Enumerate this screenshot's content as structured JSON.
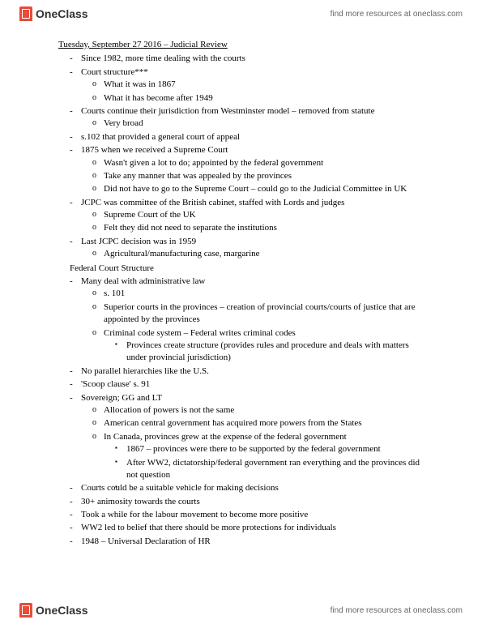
{
  "brand": {
    "name": "OneClass",
    "tagline": "find more resources at oneclass.com"
  },
  "doc": {
    "title": "Tuesday, September 27 2016 – Judicial Review",
    "sections": [
      {
        "heading": null,
        "items": [
          {
            "t": "Since 1982, more time dealing with the courts",
            "sub": []
          },
          {
            "t": "Court structure***",
            "sub": [
              {
                "t": "What it was in 1867",
                "sub": []
              },
              {
                "t": "What it has become after 1949",
                "sub": []
              }
            ]
          },
          {
            "t": "Courts continue their jurisdiction from Westminster model – removed from statute",
            "sub": [
              {
                "t": "Very broad",
                "sub": []
              }
            ]
          },
          {
            "t": "s.102 that provided a general court of appeal",
            "sub": []
          },
          {
            "t": "1875 when we received a Supreme Court",
            "sub": [
              {
                "t": "Wasn't given a lot to do; appointed by the federal government",
                "sub": []
              },
              {
                "t": "Take any manner that was appealed by the provinces",
                "sub": []
              },
              {
                "t": "Did not have to go to the Supreme Court – could go to the Judicial Committee in UK",
                "sub": []
              }
            ]
          },
          {
            "t": "JCPC was committee of the British cabinet, staffed with Lords and judges",
            "sub": [
              {
                "t": "Supreme Court of the UK",
                "sub": []
              },
              {
                "t": "Felt they did not need to separate the institutions",
                "sub": []
              }
            ]
          },
          {
            "t": "Last JCPC decision was in 1959",
            "sub": [
              {
                "t": "Agricultural/manufacturing case, margarine",
                "sub": []
              }
            ]
          }
        ]
      },
      {
        "heading": "Federal Court Structure",
        "items": [
          {
            "t": "Many deal with administrative law",
            "sub": [
              {
                "t": "s. 101",
                "sub": []
              },
              {
                "t": "Superior courts in the provinces – creation of provincial courts/courts of justice that are appointed by the provinces",
                "sub": []
              },
              {
                "t": "Criminal code system – Federal writes criminal codes",
                "sub": [
                  {
                    "t": "Provinces create structure (provides rules and procedure and deals with matters under provincial jurisdiction)"
                  }
                ]
              }
            ]
          },
          {
            "t": "No parallel hierarchies like the U.S.",
            "sub": []
          },
          {
            "t": "'Scoop clause' s. 91",
            "sub": []
          },
          {
            "t": "Sovereign; GG and LT",
            "sub": [
              {
                "t": "Allocation of powers is not the same",
                "sub": []
              },
              {
                "t": "American central government has acquired more powers from the States",
                "sub": []
              },
              {
                "t": "In Canada, provinces grew at the expense of the federal government",
                "sub": [
                  {
                    "t": "1867 – provinces were there to be supported by the federal government"
                  },
                  {
                    "t": "After WW2, dictatorship/federal government ran everything and the provinces did not question"
                  },
                  {
                    "t": ""
                  }
                ]
              }
            ]
          },
          {
            "t": "Courts could be a suitable vehicle for making decisions",
            "sub": []
          },
          {
            "t": "30+ animosity towards the courts",
            "sub": []
          },
          {
            "t": "Took a while for the labour movement to become more positive",
            "sub": []
          },
          {
            "t": "WW2 led to belief that there should be more protections for individuals",
            "sub": []
          },
          {
            "t": "1948 – Universal Declaration of HR",
            "sub": []
          }
        ]
      }
    ]
  }
}
